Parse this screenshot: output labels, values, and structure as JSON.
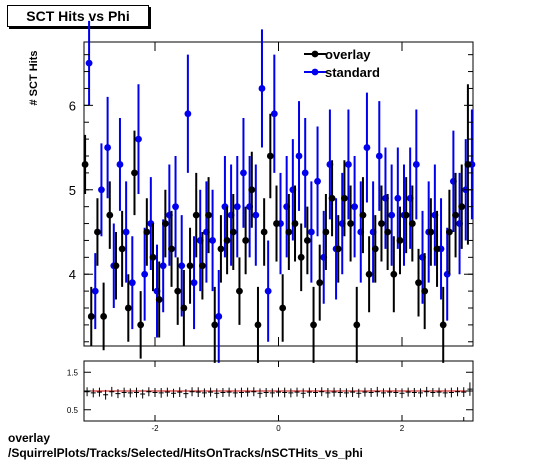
{
  "title": "SCT Hits vs Phi",
  "ylabel": "# SCT Hits",
  "footer_line1": "overlay",
  "footer_line2": "/SquirrelPlots/Tracks/Selected/HitsOnTracks/nSCTHits_vs_phi",
  "colors": {
    "overlay": "#000000",
    "standard": "#0000ee",
    "ratio_line": "#cc0000"
  },
  "chart_data": [
    {
      "type": "scatter",
      "title": "SCT Hits vs Phi",
      "ylabel": "# SCT Hits",
      "xlim": [
        -3.15,
        3.15
      ],
      "ylim": [
        3.15,
        6.75
      ],
      "yticks": [
        4,
        5,
        6
      ],
      "legend": {
        "placement": "top-right",
        "entries": [
          "overlay",
          "standard"
        ]
      },
      "grid": false,
      "series": [
        {
          "name": "overlay",
          "x": [
            -3.1,
            -3.0,
            -2.9,
            -2.8,
            -2.7,
            -2.6,
            -2.5,
            -2.4,
            -2.3,
            -2.2,
            -2.1,
            -2.0,
            -1.9,
            -1.8,
            -1.7,
            -1.6,
            -1.5,
            -1.4,
            -1.3,
            -1.2,
            -1.1,
            -1.0,
            -0.9,
            -0.8,
            -0.7,
            -0.6,
            -0.5,
            -0.4,
            -0.3,
            -0.2,
            -0.1,
            0.0,
            0.1,
            0.2,
            0.3,
            0.4,
            0.5,
            0.6,
            0.7,
            0.8,
            0.9,
            1.0,
            1.1,
            1.2,
            1.3,
            1.4,
            1.5,
            1.6,
            1.7,
            1.8,
            1.9,
            2.0,
            2.1,
            2.2,
            2.3,
            2.4,
            2.5,
            2.6,
            2.7,
            2.8,
            2.9,
            3.0,
            3.1
          ],
          "y": [
            5.3,
            3.5,
            4.5,
            3.5,
            4.7,
            4.1,
            4.3,
            3.6,
            5.2,
            3.4,
            4.5,
            4.2,
            3.7,
            4.6,
            4.3,
            3.8,
            3.6,
            4.1,
            4.7,
            4.1,
            4.7,
            3.4,
            4.3,
            4.4,
            4.5,
            3.8,
            4.4,
            5.0,
            3.4,
            4.5,
            5.4,
            4.6,
            3.6,
            4.5,
            4.6,
            4.2,
            4.4,
            3.4,
            3.9,
            4.5,
            4.9,
            4.3,
            4.9,
            4.6,
            3.4,
            4.7,
            4.0,
            4.3,
            4.6,
            4.5,
            4.0,
            4.4,
            4.7,
            4.6,
            3.9,
            3.8,
            4.5,
            4.3,
            3.4,
            4.5,
            4.7,
            4.8,
            5.3
          ],
          "err": [
            0.35,
            0.35,
            0.4,
            0.4,
            0.4,
            0.4,
            0.45,
            0.4,
            0.5,
            0.4,
            0.4,
            0.4,
            0.45,
            0.4,
            0.45,
            0.4,
            0.45,
            0.45,
            0.5,
            0.4,
            0.45,
            0.45,
            0.4,
            0.4,
            0.45,
            0.4,
            0.4,
            0.45,
            0.45,
            0.4,
            0.5,
            0.45,
            0.4,
            0.45,
            0.45,
            0.4,
            0.4,
            0.45,
            0.45,
            0.45,
            0.45,
            0.4,
            0.45,
            0.45,
            0.45,
            0.45,
            0.45,
            0.4,
            0.45,
            0.45,
            0.45,
            0.4,
            0.45,
            0.45,
            0.4,
            0.45,
            0.4,
            0.45,
            0.45,
            0.5,
            0.5,
            0.5,
            0.95
          ]
        },
        {
          "name": "standard",
          "x": [
            -3.1,
            -3.0,
            -2.9,
            -2.8,
            -2.7,
            -2.6,
            -2.5,
            -2.4,
            -2.3,
            -2.2,
            -2.1,
            -2.0,
            -1.9,
            -1.8,
            -1.7,
            -1.6,
            -1.5,
            -1.4,
            -1.3,
            -1.2,
            -1.1,
            -1.0,
            -0.9,
            -0.8,
            -0.7,
            -0.6,
            -0.5,
            -0.4,
            -0.3,
            -0.2,
            -0.1,
            0.0,
            0.1,
            0.2,
            0.3,
            0.4,
            0.5,
            0.6,
            0.7,
            0.8,
            0.9,
            1.0,
            1.1,
            1.2,
            1.3,
            1.4,
            1.5,
            1.6,
            1.7,
            1.8,
            1.9,
            2.0,
            2.1,
            2.2,
            2.3,
            2.4,
            2.5,
            2.6,
            2.7,
            2.8,
            2.9,
            3.0,
            3.1
          ],
          "y": [
            6.5,
            3.8,
            5.0,
            5.5,
            4.1,
            5.3,
            4.5,
            3.9,
            5.6,
            4.0,
            4.6,
            3.8,
            4.1,
            4.7,
            4.8,
            4.1,
            5.9,
            3.9,
            4.4,
            4.5,
            4.4,
            3.5,
            4.8,
            4.7,
            4.8,
            5.2,
            4.8,
            4.7,
            6.2,
            3.8,
            5.9,
            4.6,
            4.8,
            5.0,
            5.4,
            5.2,
            4.5,
            5.1,
            4.2,
            5.3,
            4.3,
            4.6,
            5.3,
            4.8,
            4.5,
            5.5,
            4.5,
            5.4,
            4.9,
            4.7,
            4.9,
            4.7,
            4.9,
            5.3,
            4.2,
            4.5,
            4.7,
            4.3,
            4.0,
            5.1,
            4.6,
            5.0,
            5.3
          ],
          "err": [
            0.5,
            0.45,
            0.55,
            0.6,
            0.5,
            0.55,
            0.6,
            0.55,
            0.65,
            0.55,
            0.55,
            0.55,
            0.55,
            0.6,
            0.6,
            0.6,
            0.7,
            0.55,
            0.6,
            0.6,
            0.6,
            0.55,
            0.6,
            0.6,
            0.6,
            0.65,
            0.6,
            0.6,
            0.7,
            0.6,
            0.7,
            0.6,
            0.6,
            0.6,
            0.65,
            0.65,
            0.6,
            0.65,
            0.55,
            0.65,
            0.6,
            0.6,
            0.65,
            0.6,
            0.6,
            0.65,
            0.6,
            0.65,
            0.6,
            0.6,
            0.6,
            0.6,
            0.6,
            0.65,
            0.55,
            0.6,
            0.6,
            0.6,
            0.55,
            0.6,
            0.6,
            0.6,
            0.65
          ]
        }
      ]
    },
    {
      "type": "scatter",
      "xlim": [
        -3.15,
        3.15
      ],
      "ylim": [
        0.2,
        1.8
      ],
      "xticks": [
        -2,
        0,
        2
      ],
      "yticks": [
        0.5,
        1,
        1.5
      ],
      "reference_line": 1.0,
      "series": [
        {
          "x": [
            -3.1,
            -3.0,
            -2.9,
            -2.8,
            -2.7,
            -2.6,
            -2.5,
            -2.4,
            -2.3,
            -2.2,
            -2.1,
            -2.0,
            -1.9,
            -1.8,
            -1.7,
            -1.6,
            -1.5,
            -1.4,
            -1.3,
            -1.2,
            -1.1,
            -1.0,
            -0.9,
            -0.8,
            -0.7,
            -0.6,
            -0.5,
            -0.4,
            -0.3,
            -0.2,
            -0.1,
            0.0,
            0.1,
            0.2,
            0.3,
            0.4,
            0.5,
            0.6,
            0.7,
            0.8,
            0.9,
            1.0,
            1.1,
            1.2,
            1.3,
            1.4,
            1.5,
            1.6,
            1.7,
            1.8,
            1.9,
            2.0,
            2.1,
            2.2,
            2.3,
            2.4,
            2.5,
            2.6,
            2.7,
            2.8,
            2.9,
            3.0,
            3.1
          ],
          "y": [
            0.98,
            0.95,
            0.97,
            0.9,
            0.98,
            0.93,
            0.96,
            0.95,
            0.96,
            0.92,
            0.98,
            0.96,
            0.95,
            0.97,
            0.94,
            0.97,
            0.93,
            0.98,
            0.97,
            0.95,
            0.97,
            0.94,
            0.96,
            0.97,
            0.95,
            0.96,
            0.97,
            0.98,
            0.94,
            0.96,
            0.95,
            0.97,
            0.96,
            0.95,
            0.97,
            0.94,
            0.97,
            0.96,
            0.98,
            0.95,
            0.97,
            0.96,
            0.95,
            0.97,
            0.94,
            0.97,
            0.96,
            0.98,
            0.95,
            0.97,
            0.96,
            0.94,
            0.97,
            0.96,
            0.95,
            0.98,
            0.96,
            0.97,
            0.95,
            0.96,
            0.98,
            0.97,
            1.05
          ],
          "err": [
            0.12,
            0.12,
            0.12,
            0.13,
            0.13,
            0.12,
            0.13,
            0.12,
            0.13,
            0.12,
            0.12,
            0.12,
            0.13,
            0.12,
            0.12,
            0.13,
            0.12,
            0.12,
            0.13,
            0.12,
            0.12,
            0.13,
            0.12,
            0.12,
            0.12,
            0.13,
            0.12,
            0.12,
            0.13,
            0.12,
            0.12,
            0.12,
            0.13,
            0.12,
            0.12,
            0.13,
            0.12,
            0.12,
            0.12,
            0.13,
            0.12,
            0.12,
            0.12,
            0.13,
            0.12,
            0.12,
            0.12,
            0.13,
            0.12,
            0.12,
            0.12,
            0.13,
            0.12,
            0.12,
            0.12,
            0.13,
            0.12,
            0.12,
            0.12,
            0.13,
            0.12,
            0.13,
            0.18
          ]
        }
      ]
    }
  ]
}
